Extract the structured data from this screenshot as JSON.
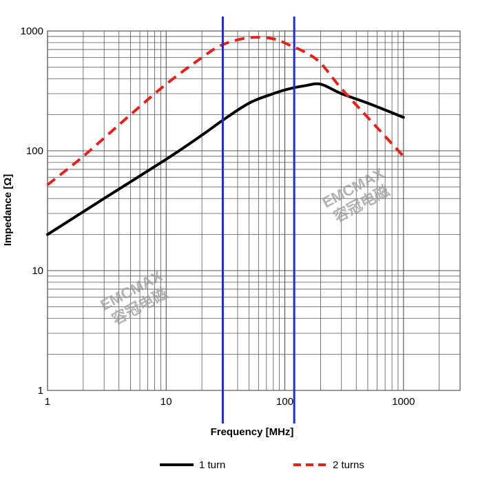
{
  "chart_data": {
    "type": "line",
    "xscale": "log",
    "yscale": "log",
    "xlim": [
      1,
      3000
    ],
    "ylim": [
      1,
      1000
    ],
    "xlabel": "Frequency [MHz]",
    "ylabel": "Impedance [Ω]",
    "x_ticks": [
      {
        "value": 1,
        "label": "1"
      },
      {
        "value": 10,
        "label": "10"
      },
      {
        "value": 100,
        "label": "100"
      },
      {
        "value": 1000,
        "label": "1000"
      }
    ],
    "y_ticks": [
      {
        "value": 1,
        "label": "1"
      },
      {
        "value": 10,
        "label": "10"
      },
      {
        "value": 100,
        "label": "100"
      },
      {
        "value": 1000,
        "label": "1000"
      }
    ],
    "grid": true,
    "series": [
      {
        "name": "1 turn",
        "color": "#000000",
        "style": "solid",
        "points": [
          [
            1,
            20
          ],
          [
            3,
            40
          ],
          [
            10,
            85
          ],
          [
            20,
            135
          ],
          [
            30,
            180
          ],
          [
            50,
            250
          ],
          [
            80,
            300
          ],
          [
            110,
            330
          ],
          [
            150,
            350
          ],
          [
            200,
            360
          ],
          [
            300,
            300
          ],
          [
            500,
            250
          ],
          [
            1000,
            190
          ]
        ]
      },
      {
        "name": "2 turns",
        "color": "#e8201a",
        "style": "dashed",
        "points": [
          [
            1,
            52
          ],
          [
            2,
            90
          ],
          [
            5,
            200
          ],
          [
            10,
            360
          ],
          [
            20,
            600
          ],
          [
            30,
            770
          ],
          [
            50,
            880
          ],
          [
            80,
            860
          ],
          [
            110,
            760
          ],
          [
            150,
            660
          ],
          [
            200,
            540
          ],
          [
            300,
            330
          ],
          [
            500,
            190
          ],
          [
            1000,
            90
          ]
        ]
      }
    ],
    "reference_lines": [
      {
        "orientation": "vertical",
        "x": 30,
        "color": "#1f2bd6"
      },
      {
        "orientation": "vertical",
        "x": 120,
        "color": "#1f2bd6"
      }
    ],
    "legend": {
      "position": "bottom",
      "entries": [
        "1 turn",
        "2 turns"
      ]
    }
  },
  "watermarks": [
    {
      "line1": "EMCMAX",
      "line2": "容冠电磁"
    },
    {
      "line1": "EMCMAX",
      "line2": "容冠电磁"
    }
  ]
}
